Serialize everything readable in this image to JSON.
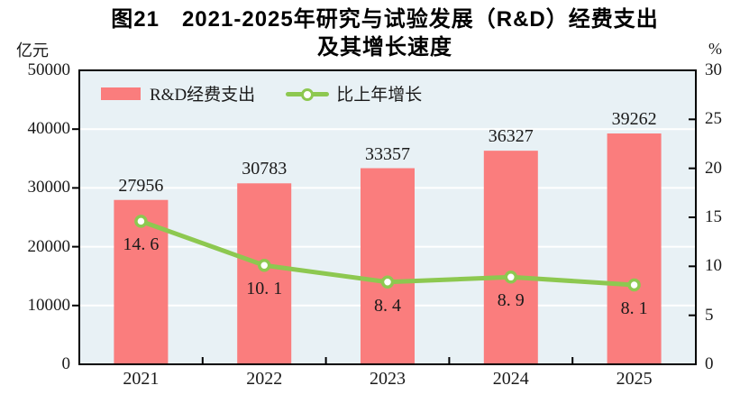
{
  "title": {
    "line1": "图21　2021-2025年研究与试验发展（R&D）经费支出",
    "line2": "及其增长速度"
  },
  "axes_units": {
    "left": "亿元",
    "right": "%"
  },
  "legend": {
    "bar_label": "R&D经费支出",
    "line_label": "比上年增长"
  },
  "colors": {
    "bar": "#FA7D7D",
    "line": "#8DC850",
    "marker_fill": "#FFFFFF",
    "plot_background": "#E8F1F5",
    "gridline": "#FFFFFF",
    "frame": "#000000",
    "text": "#1A1A1A"
  },
  "chart_data": {
    "type": "bar",
    "subtype": "bar+line-dual-axis",
    "title": "图21　2021-2025年研究与试验发展（R&D）经费支出及其增长速度",
    "categories": [
      "2021",
      "2022",
      "2023",
      "2024",
      "2025"
    ],
    "series": [
      {
        "name": "R&D经费支出",
        "type": "bar",
        "axis": "left",
        "values": [
          27956,
          30783,
          33357,
          36327,
          39262
        ],
        "color": "#FA7D7D"
      },
      {
        "name": "比上年增长",
        "type": "line",
        "axis": "right",
        "values": [
          14.6,
          10.1,
          8.4,
          8.9,
          8.1
        ],
        "color": "#8DC850",
        "marker": "open-circle"
      }
    ],
    "left_axis": {
      "label": "亿元",
      "min": 0,
      "max": 50000,
      "tick_step": 10000,
      "ticks": [
        0,
        10000,
        20000,
        30000,
        40000,
        50000
      ]
    },
    "right_axis": {
      "label": "%",
      "min": 0,
      "max": 30,
      "tick_step": 5,
      "ticks": [
        0,
        5,
        10,
        15,
        20,
        25,
        30
      ]
    },
    "grid": "horizontal-white-lines-on-light-blue",
    "legend_position": "top-left-inside"
  }
}
